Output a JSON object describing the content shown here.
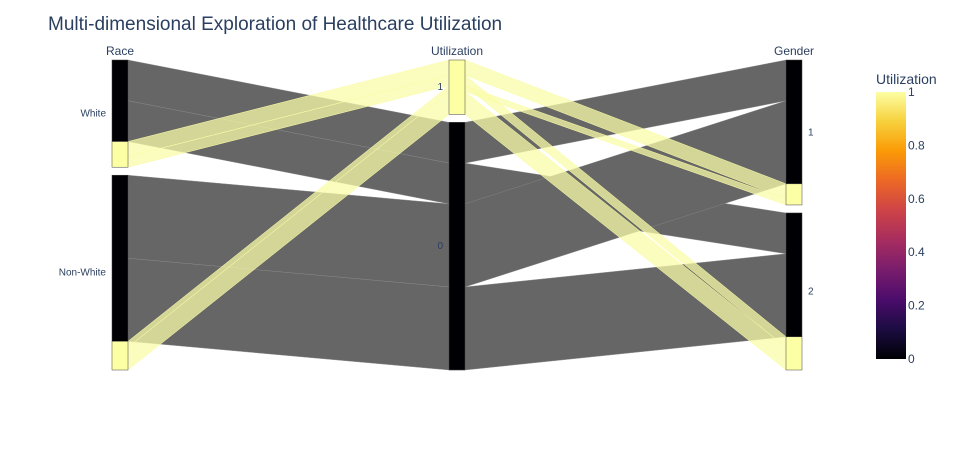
{
  "title": "Multi-dimensional Exploration of Healthcare Utilization",
  "colorbar": {
    "title": "Utilization",
    "ticks": [
      "0",
      "0.2",
      "0.4",
      "0.6",
      "0.8",
      "1"
    ],
    "tick_values": [
      0,
      0.2,
      0.4,
      0.6,
      0.8,
      1
    ]
  },
  "chart_data": {
    "type": "parallel_categories",
    "title": "Multi-dimensional Exploration of Healthcare Utilization",
    "color_scale": "inferno",
    "color_variable": "Utilization",
    "dimensions": [
      {
        "label": "Race",
        "categories": [
          "White",
          "Non-White"
        ],
        "shares": [
          0.355,
          0.645
        ]
      },
      {
        "label": "Utilization",
        "categories": [
          "1",
          "0"
        ],
        "shares": [
          0.18,
          0.82
        ]
      },
      {
        "label": "Gender",
        "categories": [
          "1",
          "2"
        ],
        "shares": [
          0.48,
          0.52
        ]
      }
    ],
    "flows": [
      {
        "race": "White",
        "utilization": "0",
        "gender": "1",
        "share": 0.135
      },
      {
        "race": "White",
        "utilization": "0",
        "gender": "2",
        "share": 0.135
      },
      {
        "race": "White",
        "utilization": "1",
        "gender": "1",
        "share": 0.05
      },
      {
        "race": "White",
        "utilization": "1",
        "gender": "2",
        "share": 0.035
      },
      {
        "race": "Non-White",
        "utilization": "0",
        "gender": "1",
        "share": 0.275
      },
      {
        "race": "Non-White",
        "utilization": "0",
        "gender": "2",
        "share": 0.275
      },
      {
        "race": "Non-White",
        "utilization": "1",
        "gender": "1",
        "share": 0.02
      },
      {
        "race": "Non-White",
        "utilization": "1",
        "gender": "2",
        "share": 0.075
      }
    ],
    "colors": {
      "utilization_0": "#000004",
      "utilization_1": "#fcffa4",
      "flow_0": "#666666",
      "flow_1": "#fafca8"
    }
  }
}
